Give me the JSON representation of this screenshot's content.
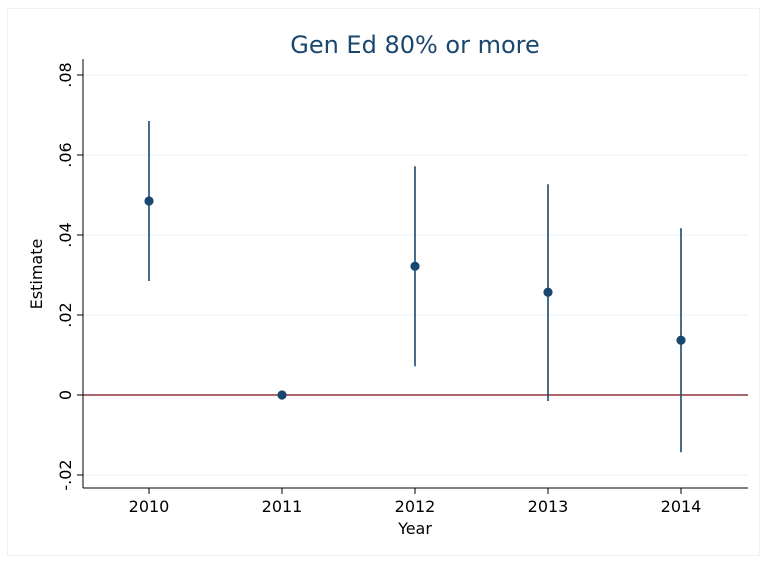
{
  "chart_data": {
    "type": "scatter",
    "title": "Gen Ed 80% or more",
    "xlabel": "Year",
    "ylabel": "Estimate",
    "categories": [
      "2010",
      "2011",
      "2012",
      "2013",
      "2014"
    ],
    "y_ticks": [
      -0.02,
      0,
      0.02,
      0.04,
      0.06,
      0.08
    ],
    "y_tick_labels": [
      "-.02",
      "0",
      ".02",
      ".04",
      ".06",
      ".08"
    ],
    "ylim": [
      -0.023,
      0.08
    ],
    "series": [
      {
        "estimate": [
          0.0485,
          0.0,
          0.0322,
          0.0257,
          0.0137
        ],
        "ci_low": [
          0.0285,
          0.0,
          0.0072,
          -0.0015,
          -0.0143
        ],
        "ci_high": [
          0.0685,
          0.0,
          0.0572,
          0.0527,
          0.0417
        ]
      }
    ],
    "reference_line": {
      "y": 0,
      "color": "#90353b"
    },
    "colors": {
      "marker": "#1a476f",
      "ci": "#1a476f",
      "grid": "#eaf2f3",
      "title": "#1a476f"
    },
    "grid": true,
    "legend": "none"
  }
}
